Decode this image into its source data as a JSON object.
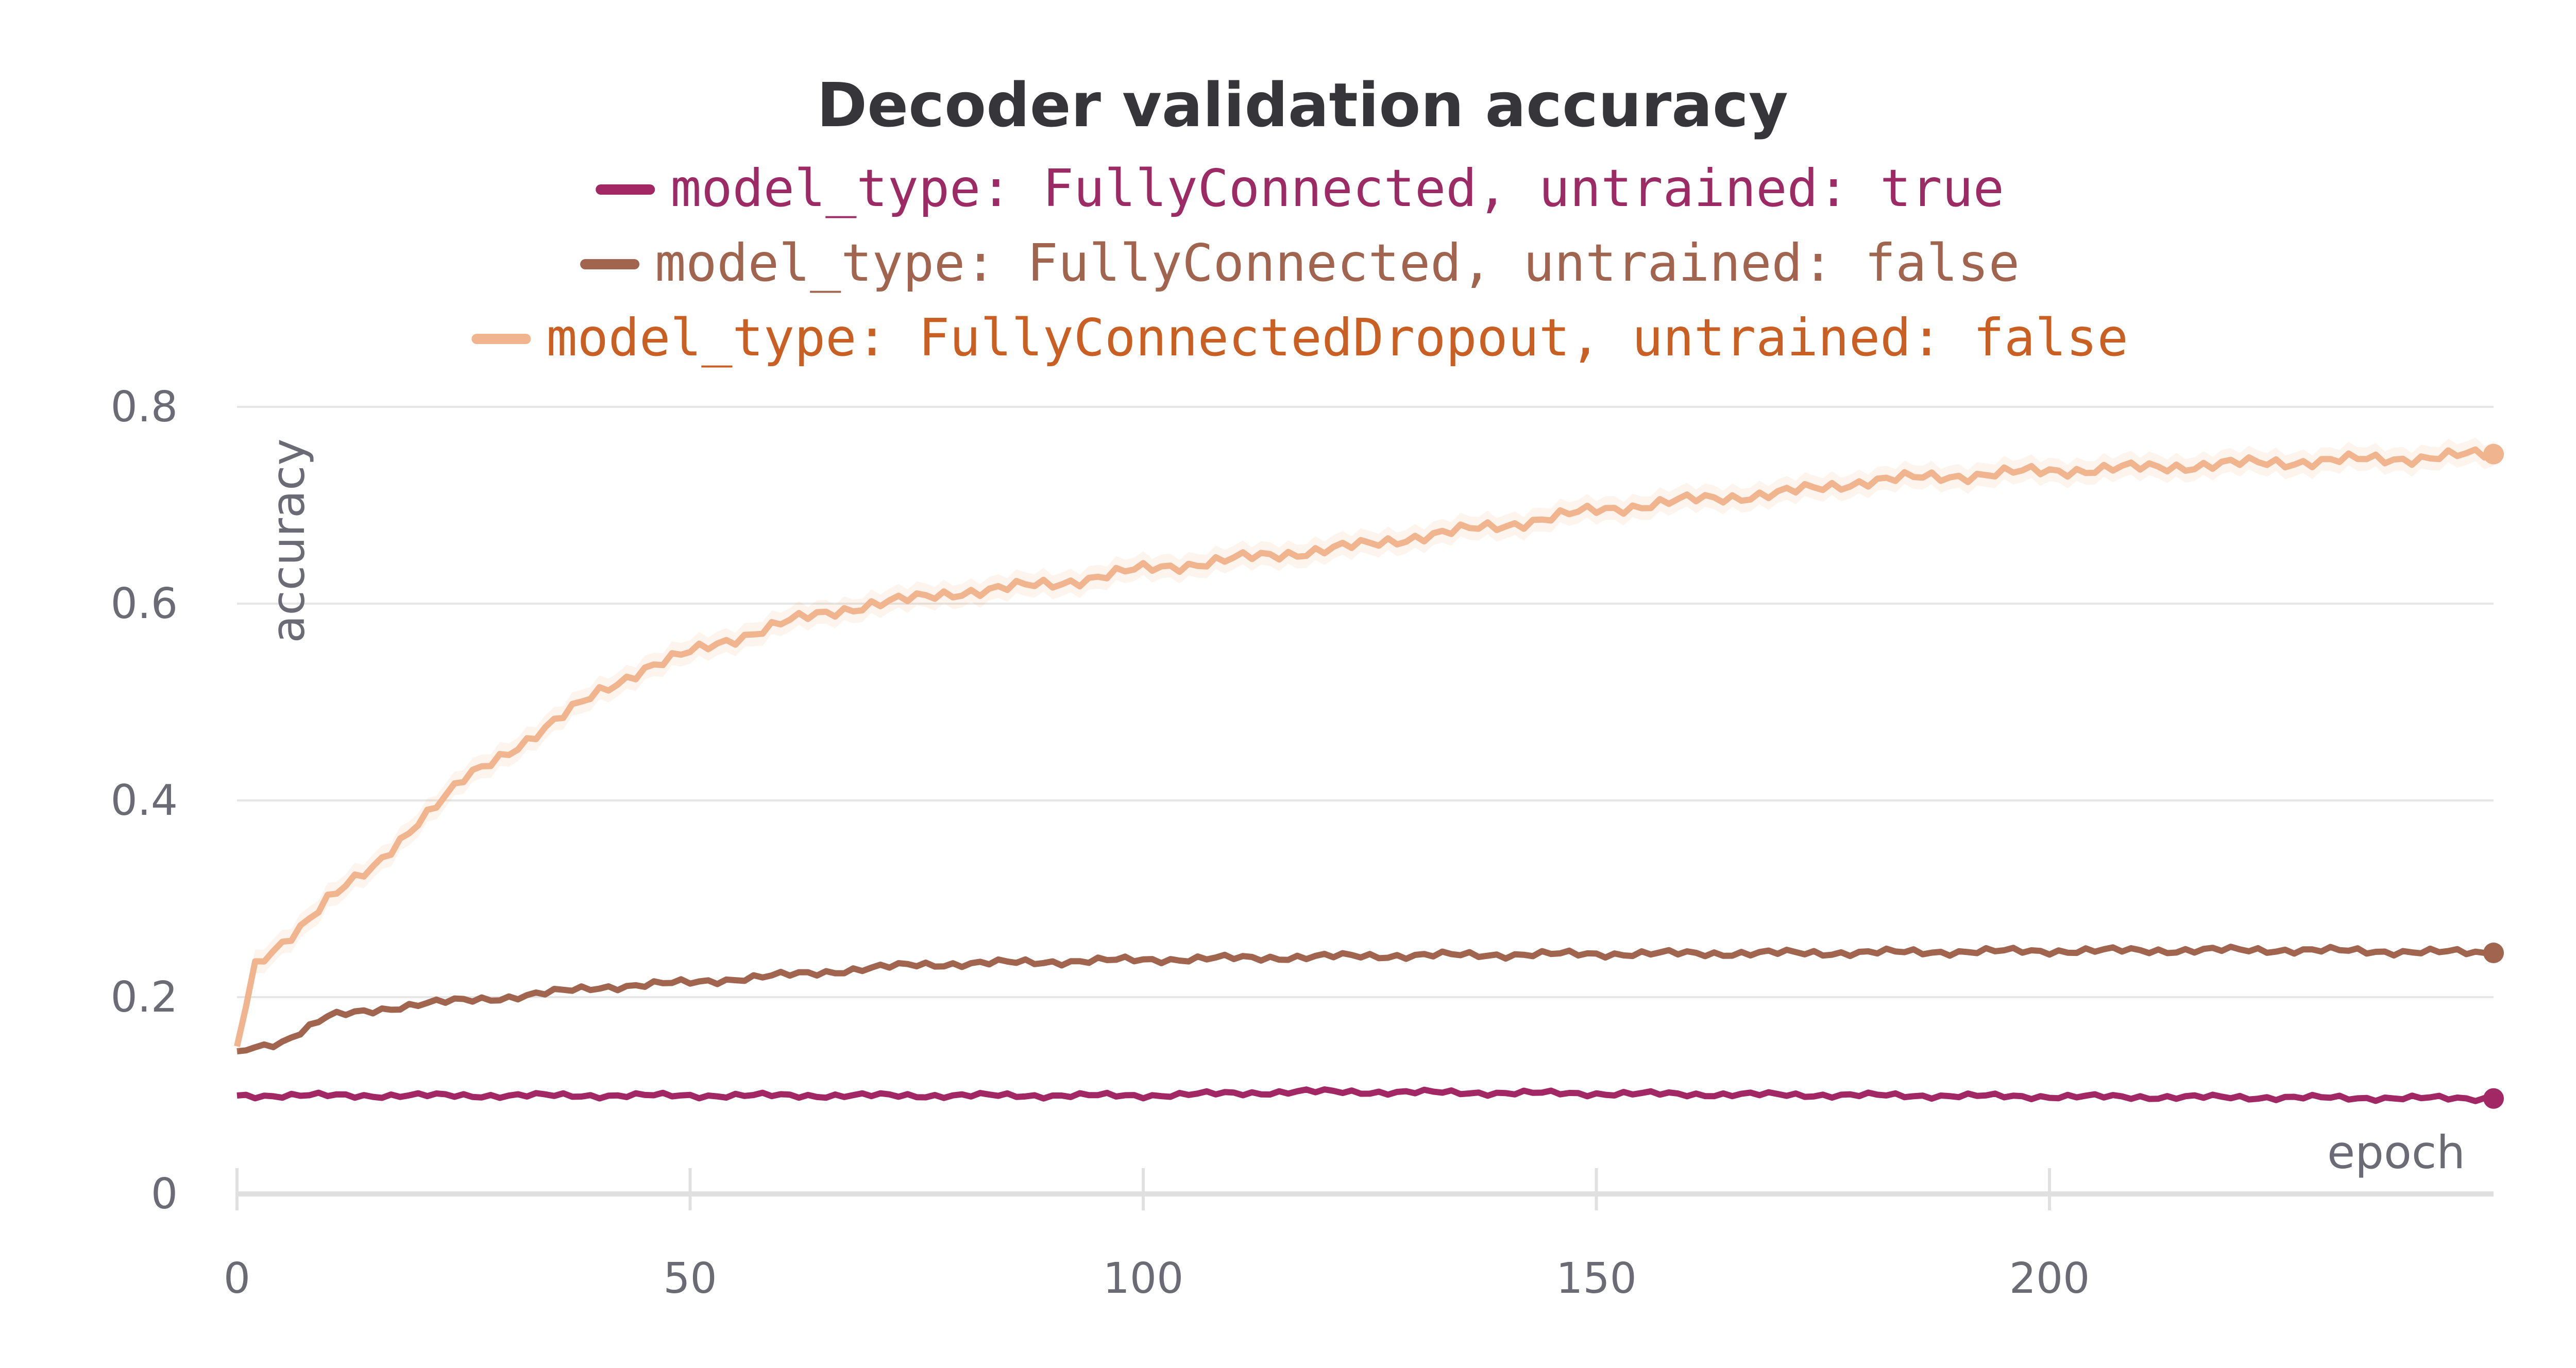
{
  "chart_data": {
    "type": "line",
    "title": "Decoder validation accuracy",
    "xlabel": "epoch",
    "ylabel": "accuracy",
    "xlim": [
      0,
      249
    ],
    "ylim": [
      0,
      0.8
    ],
    "x_ticks": [
      "0",
      "50",
      "100",
      "150",
      "200"
    ],
    "y_ticks": [
      "0",
      "0.2",
      "0.4",
      "0.6",
      "0.8"
    ],
    "grid": true,
    "legend_position": "top",
    "series": [
      {
        "name": "model_type: FullyConnected, untrained: true",
        "color": "#a12864",
        "text_color": "#9c2a64",
        "points": [
          [
            0,
            0.1
          ],
          [
            50,
            0.1
          ],
          [
            100,
            0.1
          ],
          [
            118,
            0.104
          ],
          [
            150,
            0.102
          ],
          [
            200,
            0.099
          ],
          [
            249,
            0.097
          ]
        ]
      },
      {
        "name": "model_type: FullyConnected, untrained: false",
        "color": "#a0644f",
        "text_color": "#a0644f",
        "points": [
          [
            0,
            0.145
          ],
          [
            5,
            0.155
          ],
          [
            10,
            0.18
          ],
          [
            20,
            0.193
          ],
          [
            30,
            0.2
          ],
          [
            40,
            0.21
          ],
          [
            50,
            0.215
          ],
          [
            60,
            0.222
          ],
          [
            75,
            0.233
          ],
          [
            100,
            0.238
          ],
          [
            125,
            0.242
          ],
          [
            150,
            0.244
          ],
          [
            175,
            0.245
          ],
          [
            200,
            0.247
          ],
          [
            225,
            0.248
          ],
          [
            249,
            0.245
          ]
        ]
      },
      {
        "name": "model_type: FullyConnectedDropout, untrained: false",
        "color": "#f0b48e",
        "text_color": "#c95f22",
        "points": [
          [
            0,
            0.15
          ],
          [
            2,
            0.23
          ],
          [
            5,
            0.255
          ],
          [
            10,
            0.3
          ],
          [
            15,
            0.33
          ],
          [
            20,
            0.38
          ],
          [
            25,
            0.42
          ],
          [
            30,
            0.45
          ],
          [
            35,
            0.48
          ],
          [
            40,
            0.51
          ],
          [
            45,
            0.535
          ],
          [
            50,
            0.55
          ],
          [
            55,
            0.565
          ],
          [
            60,
            0.58
          ],
          [
            65,
            0.59
          ],
          [
            70,
            0.6
          ],
          [
            75,
            0.605
          ],
          [
            80,
            0.612
          ],
          [
            90,
            0.62
          ],
          [
            100,
            0.635
          ],
          [
            110,
            0.645
          ],
          [
            120,
            0.655
          ],
          [
            125,
            0.66
          ],
          [
            130,
            0.668
          ],
          [
            140,
            0.68
          ],
          [
            150,
            0.695
          ],
          [
            160,
            0.705
          ],
          [
            170,
            0.712
          ],
          [
            175,
            0.718
          ],
          [
            180,
            0.725
          ],
          [
            190,
            0.73
          ],
          [
            200,
            0.735
          ],
          [
            210,
            0.738
          ],
          [
            220,
            0.742
          ],
          [
            230,
            0.745
          ],
          [
            240,
            0.748
          ],
          [
            249,
            0.752
          ]
        ]
      }
    ]
  }
}
